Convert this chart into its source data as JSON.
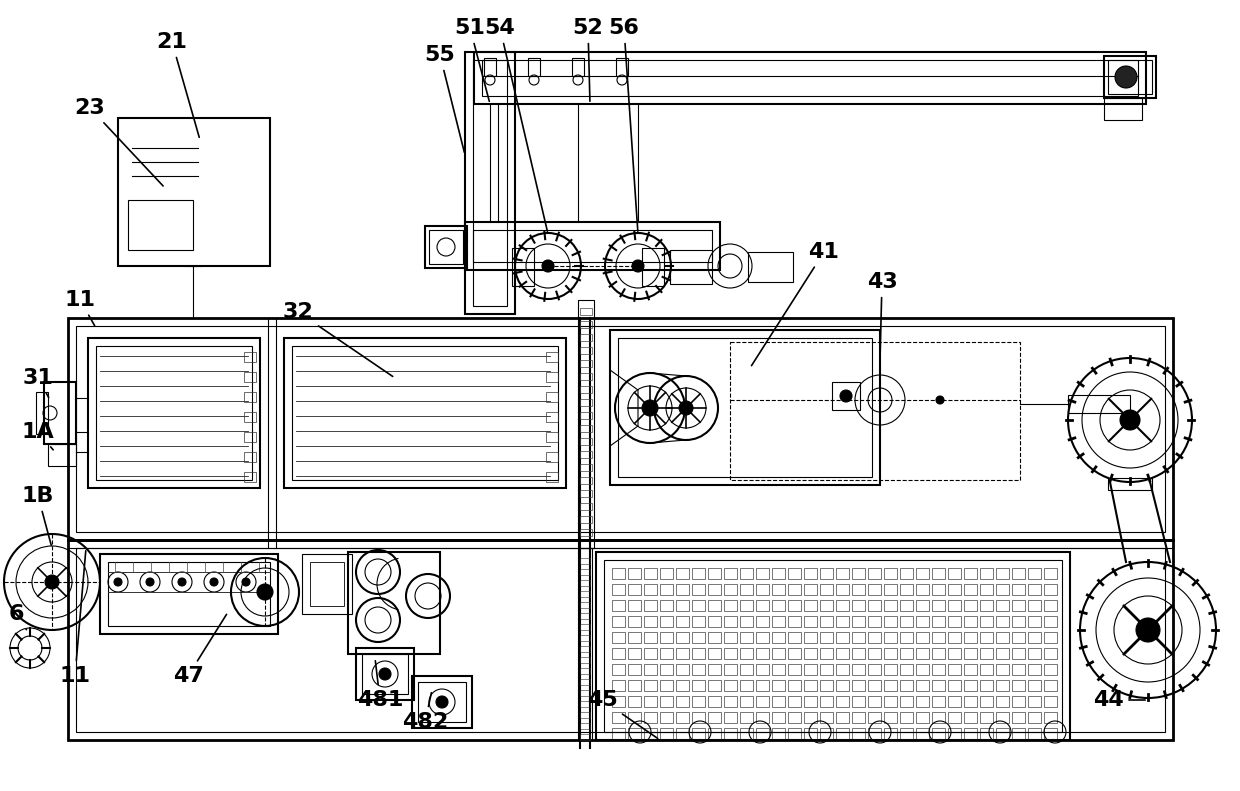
{
  "bg_color": "#ffffff",
  "line_color": "#000000",
  "label_fontsize": 16,
  "label_fontweight": "bold"
}
